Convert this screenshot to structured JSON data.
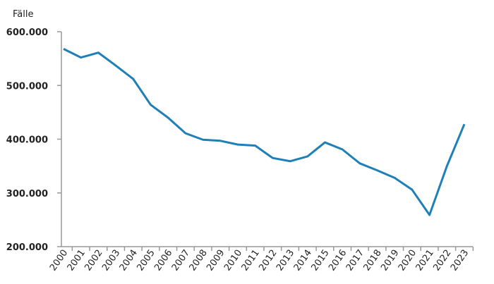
{
  "chart_data": {
    "type": "line",
    "y_label": "Fälle",
    "categories": [
      "2000",
      "2001",
      "2002",
      "2003",
      "2004",
      "2005",
      "2006",
      "2007",
      "2008",
      "2009",
      "2010",
      "2011",
      "2012",
      "2013",
      "2014",
      "2015",
      "2016",
      "2017",
      "2018",
      "2019",
      "2020",
      "2021",
      "2022",
      "2023"
    ],
    "series": [
      {
        "color": "#1f80b8",
        "values": [
          568000,
          552000,
          561000,
          537000,
          512000,
          464000,
          440000,
          411000,
          399000,
          397000,
          390000,
          388000,
          365000,
          359000,
          368000,
          394000,
          381000,
          355000,
          342000,
          328000,
          306000,
          259000,
          350000,
          428000
        ]
      }
    ],
    "ylim": [
      200000,
      600000
    ],
    "yticks": [
      {
        "value": 200000,
        "label": "200.000"
      },
      {
        "value": 300000,
        "label": "300.000"
      },
      {
        "value": 400000,
        "label": "400.000"
      },
      {
        "value": 500000,
        "label": "500.000"
      },
      {
        "value": 600000,
        "label": "600.000"
      }
    ],
    "grid": false
  }
}
